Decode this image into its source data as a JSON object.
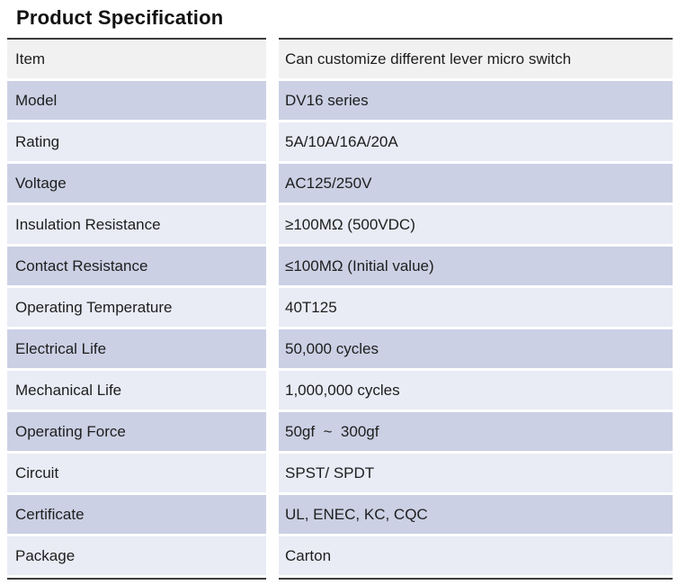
{
  "page": {
    "title": "Product Specification"
  },
  "colors": {
    "header_row_bg": "#f1f1f2",
    "dark_row_bg": "#cbd0e4",
    "light_row_bg": "#e9ebf5",
    "border": "#3b3b3b",
    "text": "#1e1e1e"
  },
  "table": {
    "rows": [
      {
        "label": "Item",
        "value": "Can customize different lever micro switch"
      },
      {
        "label": "Model",
        "value": "DV16 series"
      },
      {
        "label": "Rating",
        "value": "5A/10A/16A/20A"
      },
      {
        "label": "Voltage",
        "value": "AC125/250V"
      },
      {
        "label": "Insulation Resistance",
        "value": "≥100MΩ (500VDC)"
      },
      {
        "label": "Contact Resistance",
        "value": "≤100MΩ (Initial value)"
      },
      {
        "label": "Operating Temperature",
        "value": "40T125"
      },
      {
        "label": "Electrical Life",
        "value": "50,000 cycles"
      },
      {
        "label": "Mechanical Life",
        "value": "1,000,000 cycles"
      },
      {
        "label": "Operating Force",
        "value": "50gf  ~  300gf"
      },
      {
        "label": "Circuit",
        "value": "SPST/ SPDT"
      },
      {
        "label": "Certificate",
        "value": "UL, ENEC, KC, CQC"
      },
      {
        "label": "Package",
        "value": "Carton"
      }
    ]
  }
}
